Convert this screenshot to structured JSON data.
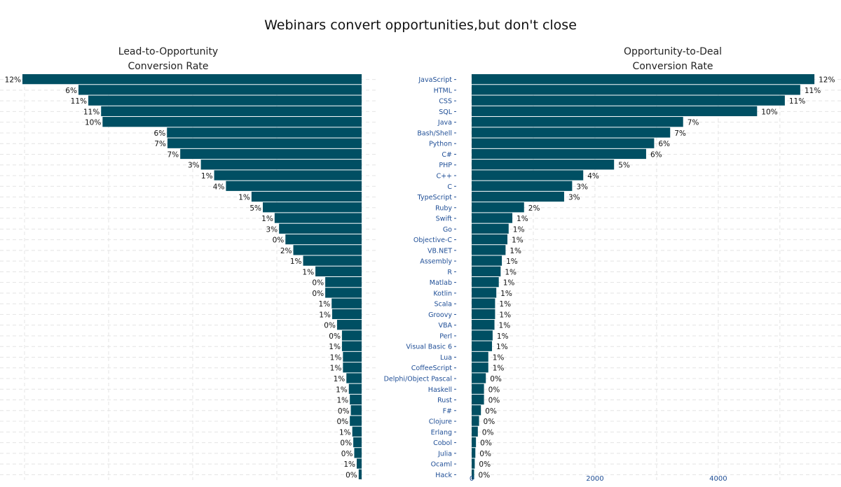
{
  "chart_data": {
    "title": "Webinars convert opportunities,but don't close",
    "bar_color": "#004f63",
    "panels": [
      {
        "type": "bar",
        "orientation": "horizontal",
        "direction": "right-to-left",
        "title_line1": "Lead-to-Opportunity",
        "title_line2": "Conversion Rate",
        "categories": [
          "JavaScript",
          "HTML",
          "CSS",
          "SQL",
          "Java",
          "Bash/Shell",
          "Python",
          "C#",
          "PHP",
          "C++",
          "C",
          "TypeScript",
          "Ruby",
          "Swift",
          "Go",
          "Objective-C",
          "VB.NET",
          "Assembly",
          "R",
          "Matlab",
          "Kotlin",
          "Scala",
          "Groovy",
          "VBA",
          "Perl",
          "Visual Basic 6",
          "Lua",
          "CoffeeScript",
          "Delphi/Object Pascal",
          "Haskell",
          "Rust",
          "F#",
          "Clojure",
          "Erlang",
          "Cobol",
          "Julia",
          "Ocaml",
          "Hack"
        ],
        "values": [
          6900,
          5760,
          5560,
          5300,
          5270,
          3960,
          3950,
          3690,
          3270,
          3000,
          2760,
          2240,
          2010,
          1770,
          1680,
          1550,
          1390,
          1190,
          940,
          740,
          740,
          610,
          600,
          500,
          400,
          400,
          380,
          380,
          310,
          260,
          240,
          220,
          240,
          190,
          170,
          150,
          100,
          60
        ],
        "labels": [
          "12%",
          "6%",
          "11%",
          "11%",
          "10%",
          "6%",
          "7%",
          "7%",
          "3%",
          "1%",
          "4%",
          "1%",
          "5%",
          "1%",
          "3%",
          "0%",
          "2%",
          "1%",
          "1%",
          "0%",
          "0%",
          "1%",
          "1%",
          "0%",
          "0%",
          "1%",
          "1%",
          "1%",
          "1%",
          "1%",
          "1%",
          "0%",
          "0%",
          "1%",
          "0%",
          "0%",
          "1%",
          "0%"
        ],
        "xlim": [
          0,
          6900
        ],
        "grid": true
      },
      {
        "type": "bar",
        "orientation": "horizontal",
        "direction": "left-to-right",
        "title_line1": "Opportunity-to-Deal",
        "title_line2": "Conversion Rate",
        "categories": [
          "JavaScript",
          "HTML",
          "CSS",
          "SQL",
          "Java",
          "Bash/Shell",
          "Python",
          "C#",
          "PHP",
          "C++",
          "C",
          "TypeScript",
          "Ruby",
          "Swift",
          "Go",
          "Objective-C",
          "VB.NET",
          "Assembly",
          "R",
          "Matlab",
          "Kotlin",
          "Scala",
          "Groovy",
          "VBA",
          "Perl",
          "Visual Basic 6",
          "Lua",
          "CoffeeScript",
          "Delphi/Object Pascal",
          "Haskell",
          "Rust",
          "F#",
          "Clojure",
          "Erlang",
          "Cobol",
          "Julia",
          "Ocaml",
          "Hack"
        ],
        "values": [
          5560,
          5330,
          5080,
          4630,
          3430,
          3220,
          2960,
          2830,
          2310,
          1810,
          1630,
          1500,
          850,
          660,
          600,
          580,
          550,
          490,
          470,
          440,
          400,
          380,
          380,
          370,
          340,
          330,
          270,
          270,
          230,
          200,
          200,
          150,
          120,
          100,
          70,
          60,
          50,
          40
        ],
        "labels": [
          "12%",
          "11%",
          "11%",
          "10%",
          "7%",
          "7%",
          "6%",
          "6%",
          "5%",
          "4%",
          "3%",
          "3%",
          "2%",
          "1%",
          "1%",
          "1%",
          "1%",
          "1%",
          "1%",
          "1%",
          "1%",
          "1%",
          "1%",
          "1%",
          "1%",
          "1%",
          "1%",
          "1%",
          "0%",
          "0%",
          "0%",
          "0%",
          "0%",
          "0%",
          "0%",
          "0%",
          "0%",
          "0%"
        ],
        "xlim": [
          0,
          5650
        ],
        "xticks": [
          0,
          2000,
          4000
        ],
        "xtick_labels": [
          "0",
          "2000",
          "4000"
        ],
        "grid": true
      }
    ]
  }
}
